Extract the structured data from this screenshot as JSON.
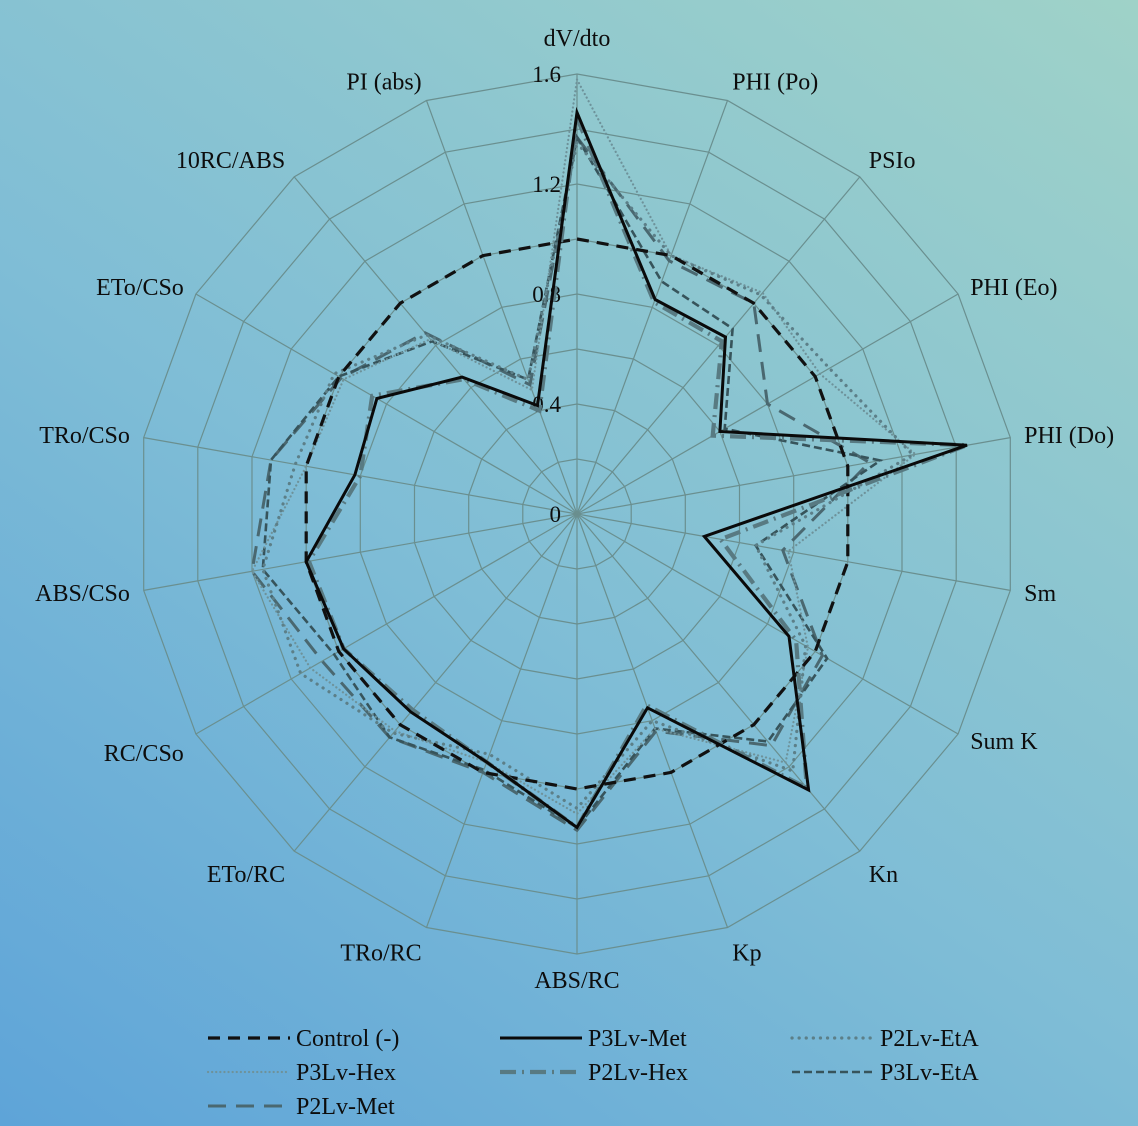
{
  "chart_data": {
    "type": "radar",
    "axes": [
      "dV/dto",
      "PHI (Po)",
      "PSIo",
      "PHI (Eo)",
      "PHI (Do)",
      "Sm",
      "Sum K",
      "Kn",
      "Kp",
      "ABS/RC",
      "TRo/RC",
      "ETo/RC",
      "RC/CSo",
      "ABS/CSo",
      "TRo/CSo",
      "ETo/CSo",
      "10RC/ABS",
      "PI (abs)"
    ],
    "ticks": [
      "0",
      "0.4",
      "0.8",
      "1.2",
      "1.6"
    ],
    "rmax": 1.6,
    "grid": true,
    "legend_position": "bottom",
    "series": [
      {
        "name": "Control (-)",
        "style": "dash-heavy",
        "values": [
          1.0,
          1.0,
          1.0,
          1.0,
          1.0,
          1.0,
          1.0,
          1.0,
          1.0,
          1.0,
          1.0,
          1.0,
          1.0,
          1.0,
          1.0,
          1.0,
          1.0,
          1.0
        ]
      },
      {
        "name": "P3Lv-Met",
        "style": "solid",
        "values": [
          1.46,
          0.83,
          0.84,
          0.6,
          1.44,
          0.47,
          0.89,
          1.31,
          0.75,
          1.14,
          0.96,
          0.94,
          0.98,
          1.0,
          0.82,
          0.84,
          0.65,
          0.42
        ]
      },
      {
        "name": "P2Lv-EtA",
        "style": "dot-sparse",
        "values": [
          1.35,
          1.0,
          1.04,
          1.06,
          1.24,
          0.66,
          0.96,
          1.22,
          0.8,
          1.07,
          0.93,
          1.04,
          1.16,
          1.16,
          1.04,
          1.02,
          0.85,
          0.52
        ]
      },
      {
        "name": "P3Lv-Hex",
        "style": "dot-fine",
        "values": [
          1.58,
          1.0,
          1.05,
          1.02,
          1.25,
          0.78,
          0.97,
          1.18,
          0.83,
          1.09,
          0.96,
          1.03,
          1.12,
          1.2,
          1.0,
          0.98,
          0.83,
          0.48
        ]
      },
      {
        "name": "P2Lv-Hex",
        "style": "dashdot",
        "values": [
          1.44,
          0.82,
          0.82,
          0.57,
          1.44,
          0.53,
          0.92,
          1.3,
          0.74,
          1.14,
          0.96,
          0.93,
          0.98,
          0.99,
          0.8,
          0.86,
          0.64,
          0.4
        ]
      },
      {
        "name": "P3Lv-EtA",
        "style": "dash-fine",
        "values": [
          1.37,
          0.9,
          0.88,
          0.62,
          1.12,
          0.66,
          1.05,
          1.08,
          0.83,
          1.14,
          0.99,
          1.06,
          1.02,
          1.16,
          1.13,
          1.0,
          0.82,
          0.52
        ]
      },
      {
        "name": "P2Lv-Met",
        "style": "dash-long",
        "values": [
          1.37,
          0.98,
          1.0,
          0.8,
          1.08,
          0.76,
          1.03,
          1.1,
          0.84,
          1.15,
          1.0,
          1.06,
          1.07,
          1.2,
          1.13,
          0.99,
          0.86,
          0.5
        ]
      }
    ]
  }
}
